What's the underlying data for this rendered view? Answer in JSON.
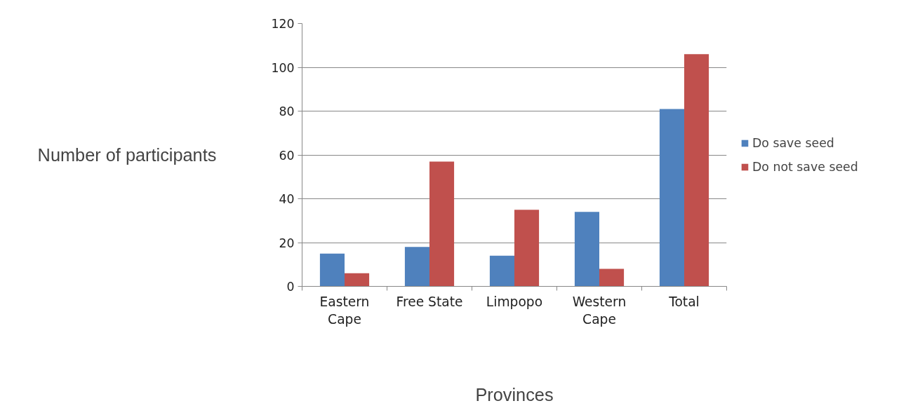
{
  "chart_data": {
    "type": "bar",
    "xlabel": "Provinces",
    "ylabel": "Number of participants",
    "categories": [
      "Eastern Cape",
      "Free State",
      "Limpopo",
      "Western Cape",
      "Total"
    ],
    "series": [
      {
        "name": "Do save seed",
        "color": "#4f81bd",
        "values": [
          15,
          18,
          14,
          34,
          81
        ]
      },
      {
        "name": "Do not save seed",
        "color": "#c0504d",
        "values": [
          6,
          57,
          35,
          8,
          106
        ]
      }
    ],
    "ylim": [
      0,
      120
    ],
    "yticks": [
      0,
      20,
      40,
      60,
      80,
      100,
      120
    ],
    "grid": "y",
    "legend": "right"
  }
}
